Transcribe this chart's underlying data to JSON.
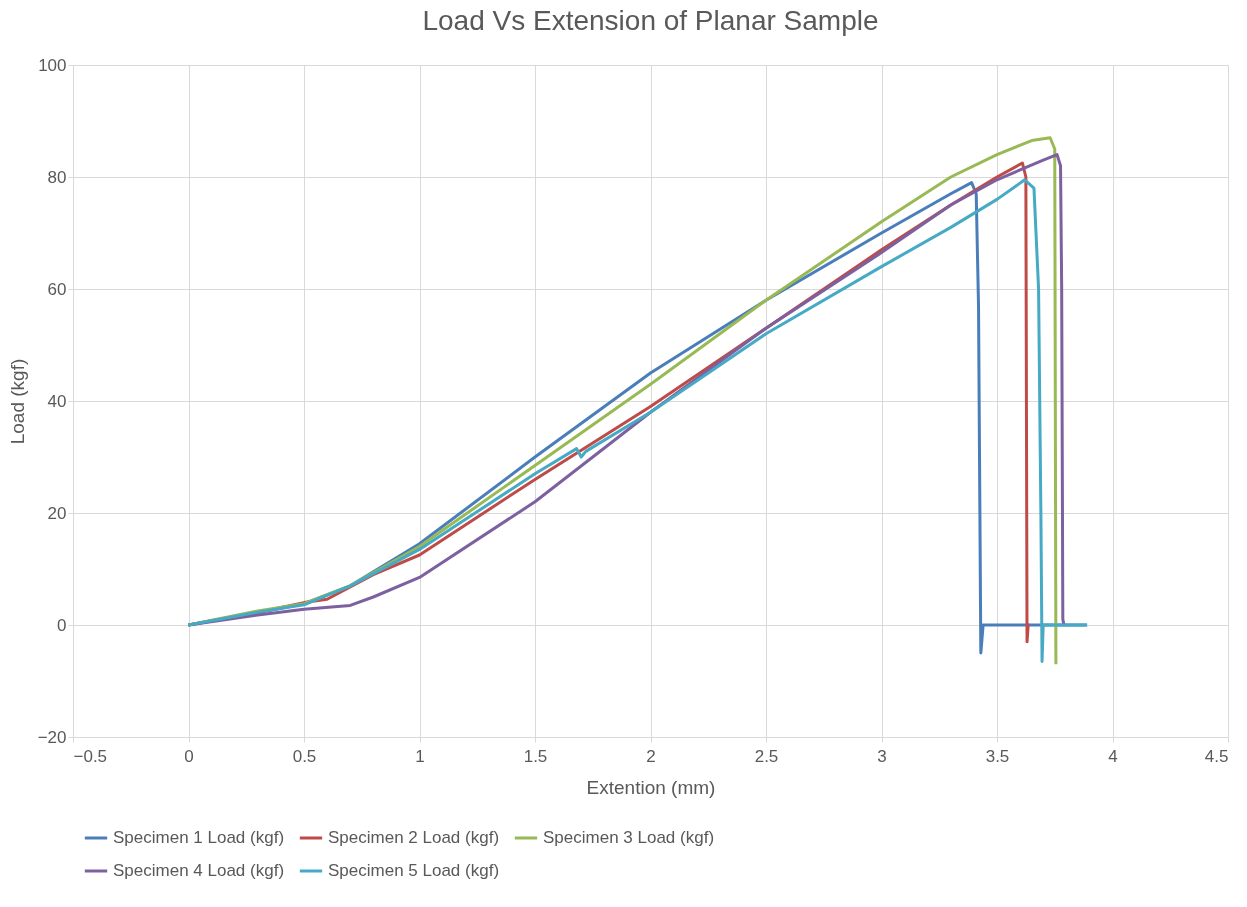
{
  "chart_data": {
    "type": "line",
    "title": "Load Vs Extension of Planar Sample",
    "xlabel": "Extention (mm)",
    "ylabel": "Load (kgf)",
    "xlim": [
      -0.5,
      4.5
    ],
    "xticks": [
      -0.5,
      0,
      0.5,
      1,
      1.5,
      2,
      2.5,
      3,
      3.5,
      4,
      4.5
    ],
    "ylim": [
      -20,
      100
    ],
    "yticks": [
      -20,
      0,
      20,
      40,
      60,
      80,
      100
    ],
    "grid": true,
    "legend": "bottom",
    "series": [
      {
        "name": "Specimen 1 Load (kgf)",
        "color": "#4a7ebb",
        "x": [
          0,
          0.3,
          0.5,
          0.7,
          1.0,
          1.5,
          2.0,
          2.5,
          3.0,
          3.3,
          3.39,
          3.41,
          3.42,
          3.43,
          3.44,
          3.89
        ],
        "values": [
          0,
          2.2,
          3.8,
          7,
          14.5,
          30,
          45,
          58,
          70,
          77,
          79,
          77,
          57,
          -5,
          0,
          0
        ]
      },
      {
        "name": "Specimen 2 Load (kgf)",
        "color": "#be4b48",
        "x": [
          0,
          0.3,
          0.5,
          0.6,
          0.8,
          1.0,
          1.5,
          2.0,
          2.5,
          3.0,
          3.3,
          3.5,
          3.61,
          3.625,
          3.63,
          3.635,
          3.64
        ],
        "values": [
          0,
          2.3,
          4,
          4.6,
          9,
          12.5,
          26,
          39,
          53,
          67,
          75,
          80,
          82.5,
          80,
          -3,
          0,
          0
        ]
      },
      {
        "name": "Specimen 3 Load (kgf)",
        "color": "#98b954",
        "x": [
          0,
          0.3,
          0.5,
          0.7,
          1.0,
          1.5,
          2.0,
          2.5,
          3.0,
          3.3,
          3.5,
          3.65,
          3.73,
          3.75,
          3.755
        ],
        "values": [
          0,
          2.5,
          3.8,
          7,
          14,
          28.5,
          43,
          58,
          72,
          80,
          84,
          86.5,
          87,
          85,
          -7
        ]
      },
      {
        "name": "Specimen 4 Load (kgf)",
        "color": "#7d60a0",
        "x": [
          0,
          0.3,
          0.5,
          0.7,
          0.8,
          1.0,
          1.5,
          2.0,
          2.5,
          3.0,
          3.3,
          3.5,
          3.7,
          3.76,
          3.775,
          3.78,
          3.785,
          3.79
        ],
        "values": [
          0,
          1.8,
          2.8,
          3.5,
          5,
          8.5,
          22,
          38,
          53,
          66.5,
          75,
          79.5,
          83,
          84,
          82,
          60,
          1,
          0
        ]
      },
      {
        "name": "Specimen 5 Load (kgf)",
        "color": "#46aac5",
        "x": [
          0,
          0.3,
          0.5,
          0.7,
          1.0,
          1.5,
          1.68,
          1.7,
          1.72,
          2.0,
          2.5,
          3.0,
          3.3,
          3.5,
          3.62,
          3.66,
          3.68,
          3.69,
          3.695,
          3.7,
          3.89
        ],
        "values": [
          0,
          2.3,
          3.6,
          7,
          13.5,
          27,
          31.5,
          30,
          31,
          38,
          52,
          64,
          71,
          76,
          79.5,
          78,
          60,
          20,
          -6.5,
          0,
          0
        ]
      }
    ]
  }
}
